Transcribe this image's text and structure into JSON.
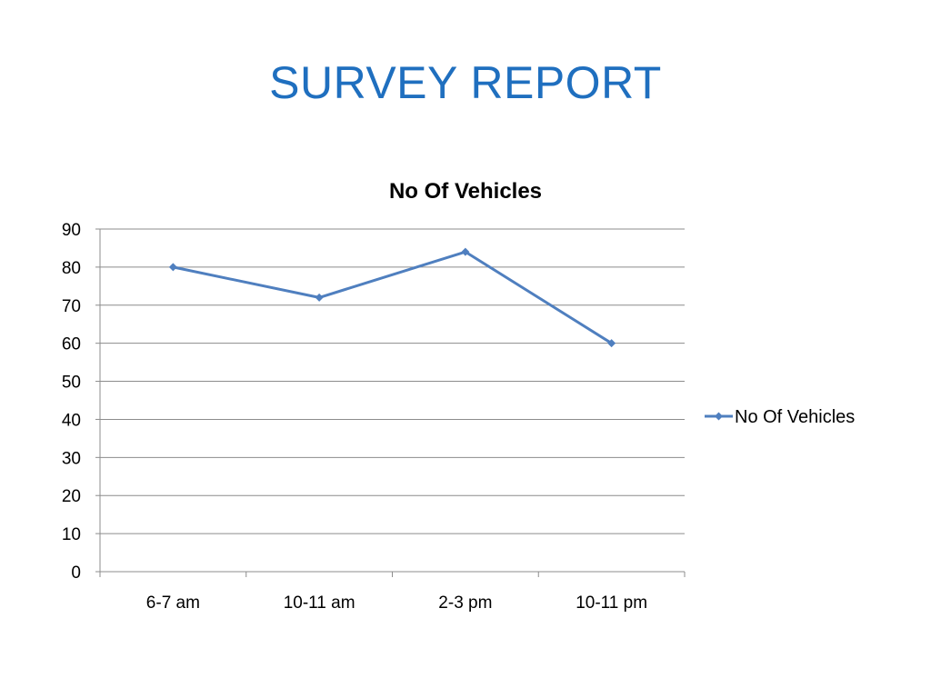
{
  "slide": {
    "title": "SURVEY REPORT"
  },
  "chart_data": {
    "type": "line",
    "title": "No Of Vehicles",
    "categories": [
      "6-7 am",
      "10-11 am",
      "2-3 pm",
      "10-11 pm"
    ],
    "series": [
      {
        "name": "No Of Vehicles",
        "values": [
          80,
          72,
          84,
          60
        ],
        "color": "#4f7fbf",
        "marker": "diamond"
      }
    ],
    "xlabel": "",
    "ylabel": "",
    "ylim": [
      0,
      90
    ],
    "yticks": [
      0,
      10,
      20,
      30,
      40,
      50,
      60,
      70,
      80,
      90
    ],
    "grid": true,
    "legend": "right"
  }
}
